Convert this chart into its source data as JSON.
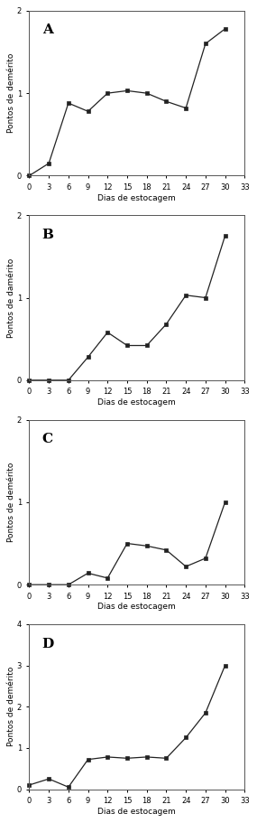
{
  "panels": [
    {
      "label": "A",
      "x": [
        0,
        3,
        6,
        9,
        12,
        15,
        18,
        21,
        24,
        27,
        30
      ],
      "y": [
        0.0,
        0.15,
        0.88,
        0.78,
        1.0,
        1.03,
        1.0,
        0.9,
        0.82,
        1.6,
        1.78
      ],
      "ylim": [
        0,
        2
      ],
      "yticks": [
        0,
        1,
        2
      ],
      "ylabel": "Pontos de demérito"
    },
    {
      "label": "B",
      "x": [
        0,
        3,
        6,
        9,
        12,
        15,
        18,
        21,
        24,
        27,
        30
      ],
      "y": [
        0.0,
        0.0,
        0.0,
        0.28,
        0.58,
        0.42,
        0.42,
        0.68,
        1.03,
        1.0,
        1.75
      ],
      "ylim": [
        0,
        2
      ],
      "yticks": [
        0,
        1,
        2
      ],
      "ylabel": "Pontos de damérito"
    },
    {
      "label": "C",
      "x": [
        0,
        3,
        6,
        9,
        12,
        15,
        18,
        21,
        24,
        27,
        30
      ],
      "y": [
        0.0,
        0.0,
        0.0,
        0.14,
        0.08,
        0.5,
        0.47,
        0.42,
        0.22,
        0.32,
        1.0
      ],
      "ylim": [
        0,
        2
      ],
      "yticks": [
        0,
        1,
        2
      ],
      "ylabel": "Pontos de demérito"
    },
    {
      "label": "D",
      "x": [
        0,
        3,
        6,
        9,
        12,
        15,
        18,
        21,
        24,
        27,
        30
      ],
      "y": [
        0.1,
        0.25,
        0.05,
        0.72,
        0.78,
        0.75,
        0.78,
        0.75,
        1.25,
        1.85,
        3.0
      ],
      "ylim": [
        0,
        4
      ],
      "yticks": [
        0,
        1,
        2,
        3,
        4
      ],
      "ylabel": "Pontos de demérito"
    }
  ],
  "xlabel": "Dias de estocagem",
  "xticks": [
    0,
    3,
    6,
    9,
    12,
    15,
    18,
    21,
    24,
    27,
    30,
    33
  ],
  "line_color": "#222222",
  "marker": "s",
  "markersize": 3.0,
  "linewidth": 0.9,
  "markerfacecolor": "#222222",
  "background_color": "#ffffff",
  "label_fontsize": 6.5,
  "tick_fontsize": 6.0,
  "panel_label_fontsize": 11
}
